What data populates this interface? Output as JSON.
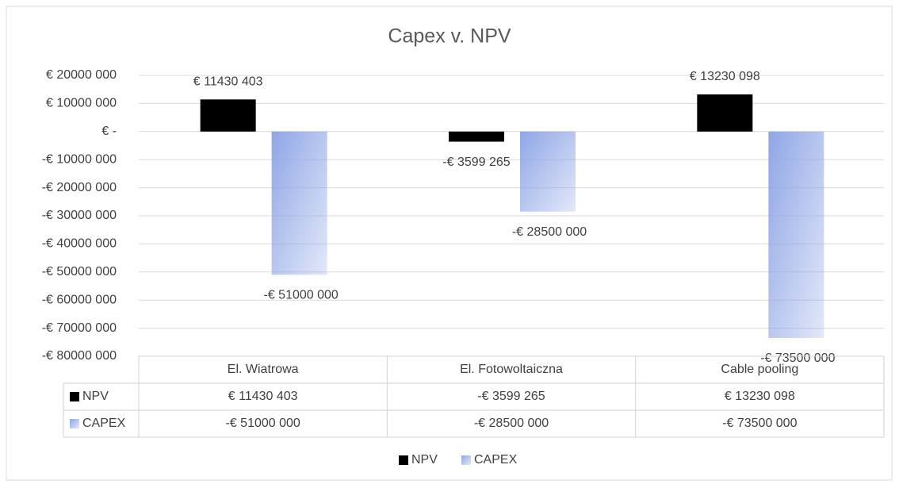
{
  "chart_data": {
    "type": "bar",
    "title": "Capex v. NPV",
    "categories": [
      "El. Wiatrowa",
      "El. Fotowoltaiczna",
      "Cable pooling"
    ],
    "series": [
      {
        "name": "NPV",
        "color": "#000000",
        "values": [
          11430403,
          -3599265,
          13230098
        ],
        "value_labels": [
          "€ 11430 403",
          "-€ 3599 265",
          "€ 13230 098"
        ]
      },
      {
        "name": "CAPEX",
        "color": "#8fa6e6",
        "values": [
          -51000000,
          -28500000,
          -73500000
        ],
        "value_labels": [
          "-€ 51000 000",
          "-€ 28500 000",
          "-€ 73500 000"
        ]
      }
    ],
    "ylim": [
      -80000000,
      20000000
    ],
    "yticks": [
      {
        "value": 20000000,
        "label": "€ 20000 000"
      },
      {
        "value": 10000000,
        "label": "€ 10000 000"
      },
      {
        "value": 0,
        "label": "€ -"
      },
      {
        "value": -10000000,
        "label": "-€ 10000 000"
      },
      {
        "value": -20000000,
        "label": "-€ 20000 000"
      },
      {
        "value": -30000000,
        "label": "-€ 30000 000"
      },
      {
        "value": -40000000,
        "label": "-€ 40000 000"
      },
      {
        "value": -50000000,
        "label": "-€ 50000 000"
      },
      {
        "value": -60000000,
        "label": "-€ 60000 000"
      },
      {
        "value": -70000000,
        "label": "-€ 70000 000"
      },
      {
        "value": -80000000,
        "label": "-€ 80000 000"
      }
    ],
    "grid": true,
    "legend": "bottom",
    "data_table": true
  }
}
